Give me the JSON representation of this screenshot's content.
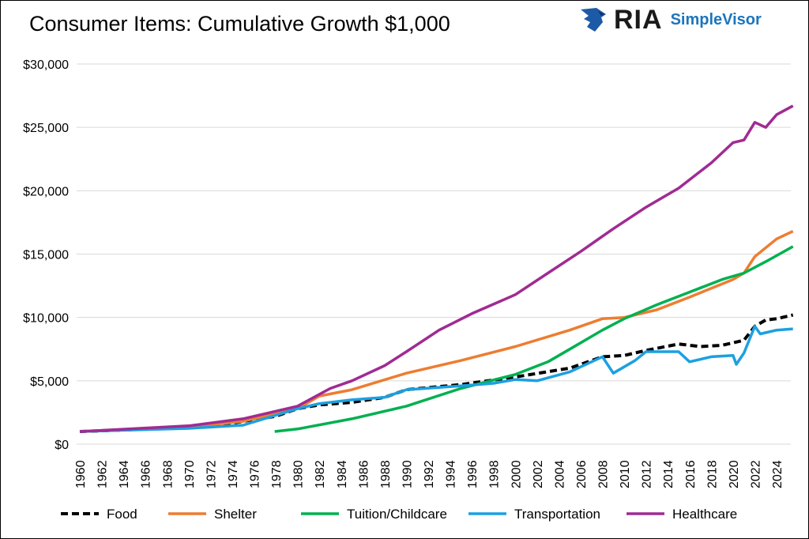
{
  "logo": {
    "brand": "RIA",
    "product": "SimpleVisor"
  },
  "chart_data": {
    "type": "line",
    "title": "Consumer Items: Cumulative Growth $1,000",
    "xlabel": "",
    "ylabel": "",
    "xlim": [
      1960,
      2025.5
    ],
    "ylim": [
      0,
      30000
    ],
    "y_ticks": [
      0,
      5000,
      10000,
      15000,
      20000,
      25000,
      30000
    ],
    "y_tick_labels": [
      "$0",
      "$5,000",
      "$10,000",
      "$15,000",
      "$20,000",
      "$25,000",
      "$30,000"
    ],
    "x_tick_labels": [
      "1960",
      "1962",
      "1964",
      "1966",
      "1968",
      "1970",
      "1972",
      "1974",
      "1976",
      "1978",
      "1980",
      "1982",
      "1984",
      "1986",
      "1988",
      "1990",
      "1992",
      "1994",
      "1996",
      "1998",
      "2000",
      "2002",
      "2004",
      "2006",
      "2008",
      "2010",
      "2012",
      "2014",
      "2016",
      "2018",
      "2020",
      "2022",
      "2024"
    ],
    "grid": "horizontal",
    "legend_position": "bottom",
    "series": [
      {
        "name": "Food",
        "color": "#000000",
        "dashed": true,
        "x": [
          1960,
          1970,
          1973,
          1975,
          1978,
          1980,
          1982,
          1985,
          1988,
          1990,
          1995,
          2000,
          2005,
          2008,
          2010,
          2012,
          2015,
          2017,
          2019,
          2021,
          2022,
          2023,
          2024,
          2025.5
        ],
        "y": [
          1000,
          1300,
          1500,
          1800,
          2200,
          2800,
          3100,
          3300,
          3700,
          4300,
          4700,
          5300,
          6000,
          6900,
          7000,
          7400,
          7900,
          7700,
          7800,
          8200,
          9300,
          9800,
          9900,
          10200
        ]
      },
      {
        "name": "Shelter",
        "color": "#ed7d31",
        "dashed": false,
        "x": [
          1960,
          1970,
          1975,
          1980,
          1982,
          1985,
          1990,
          1995,
          2000,
          2005,
          2008,
          2010,
          2013,
          2016,
          2020,
          2021,
          2022,
          2024,
          2025.5
        ],
        "y": [
          1000,
          1350,
          1800,
          2800,
          3800,
          4300,
          5600,
          6600,
          7700,
          9000,
          9900,
          10000,
          10600,
          11600,
          13000,
          13500,
          14800,
          16200,
          16800
        ]
      },
      {
        "name": "Tuition/Childcare",
        "color": "#00b050",
        "dashed": false,
        "x": [
          1977.9,
          1980,
          1985,
          1990,
          1995,
          2000,
          2003,
          2005,
          2008,
          2010,
          2013,
          2016,
          2019,
          2021,
          2023,
          2025.5
        ],
        "y": [
          1000,
          1200,
          2000,
          3000,
          4400,
          5500,
          6500,
          7500,
          9000,
          9900,
          11000,
          12000,
          13000,
          13500,
          14400,
          15600
        ]
      },
      {
        "name": "Transportation",
        "color": "#1ca0e0",
        "dashed": false,
        "x": [
          1960,
          1970,
          1975,
          1980,
          1982,
          1985,
          1988,
          1990,
          1995,
          1998,
          2000,
          2002,
          2005,
          2008,
          2009,
          2011,
          2012,
          2015,
          2016,
          2018,
          2020,
          2020.3,
          2021,
          2022,
          2022.5,
          2024,
          2025.5
        ],
        "y": [
          1000,
          1250,
          1500,
          2800,
          3200,
          3500,
          3700,
          4300,
          4600,
          4800,
          5100,
          5000,
          5700,
          6900,
          5600,
          6600,
          7300,
          7300,
          6500,
          6900,
          7000,
          6300,
          7200,
          9300,
          8700,
          9000,
          9100
        ]
      },
      {
        "name": "Healthcare",
        "color": "#a02b93",
        "dashed": false,
        "x": [
          1960,
          1970,
          1975,
          1980,
          1983,
          1985,
          1988,
          1990,
          1993,
          1996,
          2000,
          2003,
          2006,
          2009,
          2012,
          2015,
          2018,
          2020,
          2021,
          2022,
          2023,
          2024,
          2025.5
        ],
        "y": [
          1000,
          1450,
          2000,
          3000,
          4400,
          5000,
          6200,
          7300,
          9000,
          10300,
          11800,
          13500,
          15200,
          17000,
          18700,
          20200,
          22200,
          23800,
          24000,
          25400,
          25000,
          26000,
          26700
        ]
      }
    ]
  }
}
